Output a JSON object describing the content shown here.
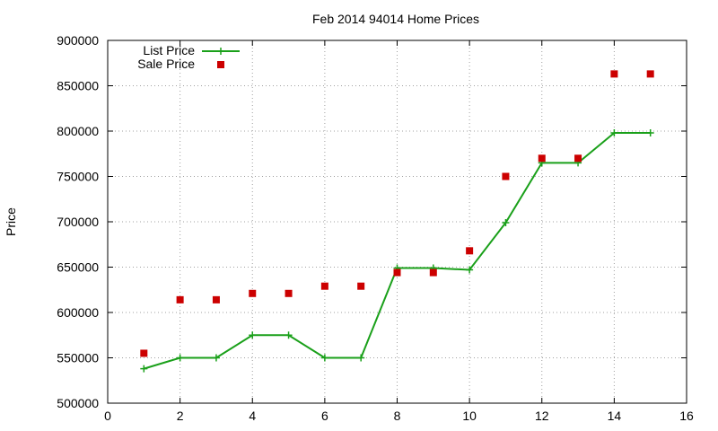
{
  "chart_data": {
    "type": "line",
    "title": "Feb 2014 94014 Home Prices",
    "xlabel": "",
    "ylabel": "Price",
    "xlim": [
      0,
      16
    ],
    "ylim": [
      500000,
      900000
    ],
    "x_ticks": [
      0,
      2,
      4,
      6,
      8,
      10,
      12,
      14,
      16
    ],
    "y_ticks": [
      500000,
      550000,
      600000,
      650000,
      700000,
      750000,
      800000,
      850000,
      900000
    ],
    "grid": true,
    "legend_position": "top-left",
    "series": [
      {
        "name": "List Price",
        "style": "line-with-plus-markers",
        "color": "#1aa01a",
        "x": [
          1,
          2,
          3,
          4,
          5,
          6,
          7,
          8,
          9,
          10,
          11,
          12,
          13,
          14,
          15
        ],
        "y": [
          538000,
          550000,
          550000,
          575000,
          575000,
          550000,
          550000,
          649000,
          649000,
          647000,
          699000,
          765000,
          765000,
          798000,
          798000
        ]
      },
      {
        "name": "Sale Price",
        "style": "square-markers",
        "color": "#cc0000",
        "x": [
          1,
          2,
          3,
          4,
          5,
          6,
          7,
          8,
          9,
          10,
          11,
          12,
          13,
          14,
          15
        ],
        "y": [
          555000,
          614000,
          614000,
          621000,
          621000,
          629000,
          629000,
          644000,
          644000,
          668000,
          750000,
          770000,
          770000,
          863000,
          863000
        ]
      }
    ]
  }
}
